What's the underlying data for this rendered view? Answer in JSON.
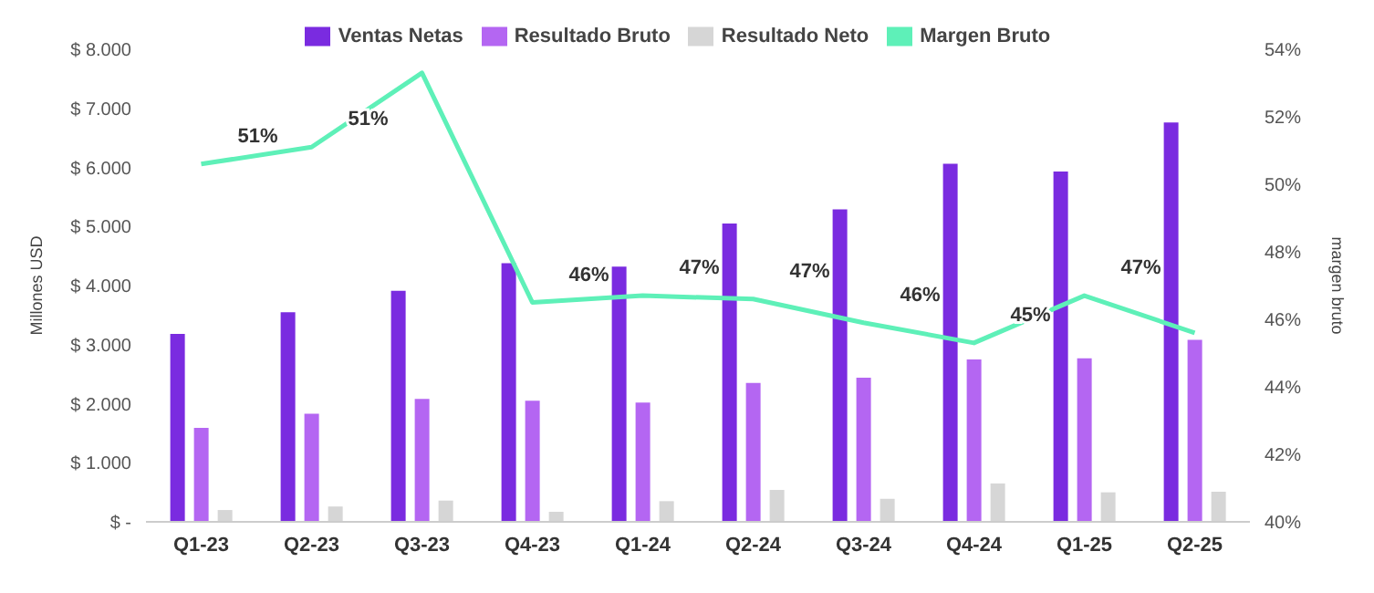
{
  "chart_data": {
    "type": "bar",
    "ylabel": "Millones USD",
    "y2label": "margen bruto",
    "categories": [
      "Q1-23",
      "Q2-23",
      "Q3-23",
      "Q4-23",
      "Q1-24",
      "Q2-24",
      "Q3-24",
      "Q4-24",
      "Q1-25",
      "Q2-25"
    ],
    "series": [
      {
        "name": "Ventas Netas",
        "color": "#7a2be0",
        "values": [
          3180,
          3550,
          3910,
          4380,
          4320,
          5050,
          5290,
          6060,
          5930,
          6760
        ]
      },
      {
        "name": "Resultado Bruto",
        "color": "#b466f2",
        "values": [
          1590,
          1830,
          2080,
          2050,
          2020,
          2350,
          2440,
          2750,
          2770,
          3080
        ]
      },
      {
        "name": "Resultado Neto",
        "color": "#d6d6d6",
        "values": [
          200,
          260,
          360,
          170,
          350,
          540,
          390,
          650,
          500,
          510
        ]
      },
      {
        "name": "Margen Bruto",
        "type": "line",
        "axis": "y2",
        "color": "#5ef0b8",
        "values": [
          50.6,
          51.1,
          53.3,
          46.5,
          46.7,
          46.6,
          45.9,
          45.3,
          46.7,
          45.6
        ],
        "value_labels": [
          "51%",
          "51%",
          null,
          "46%",
          "47%",
          "47%",
          "46%",
          "45%",
          "47%",
          null
        ]
      }
    ],
    "ylim": [
      0,
      8000
    ],
    "yticks": [
      {
        "value": 0,
        "label": "$ -"
      },
      {
        "value": 1000,
        "label": "$ 1.000"
      },
      {
        "value": 2000,
        "label": "$ 2.000"
      },
      {
        "value": 3000,
        "label": "$ 3.000"
      },
      {
        "value": 4000,
        "label": "$ 4.000"
      },
      {
        "value": 5000,
        "label": "$ 5.000"
      },
      {
        "value": 6000,
        "label": "$ 6.000"
      },
      {
        "value": 7000,
        "label": "$ 7.000"
      },
      {
        "value": 8000,
        "label": "$ 8.000"
      }
    ],
    "y2lim": [
      40,
      54
    ],
    "y2ticks": [
      {
        "value": 40,
        "label": "40%"
      },
      {
        "value": 42,
        "label": "42%"
      },
      {
        "value": 44,
        "label": "44%"
      },
      {
        "value": 46,
        "label": "46%"
      },
      {
        "value": 48,
        "label": "48%"
      },
      {
        "value": 50,
        "label": "50%"
      },
      {
        "value": 52,
        "label": "52%"
      },
      {
        "value": 54,
        "label": "54%"
      }
    ],
    "grid": false,
    "legend": "top",
    "marker": "none",
    "line_style": "solid"
  }
}
